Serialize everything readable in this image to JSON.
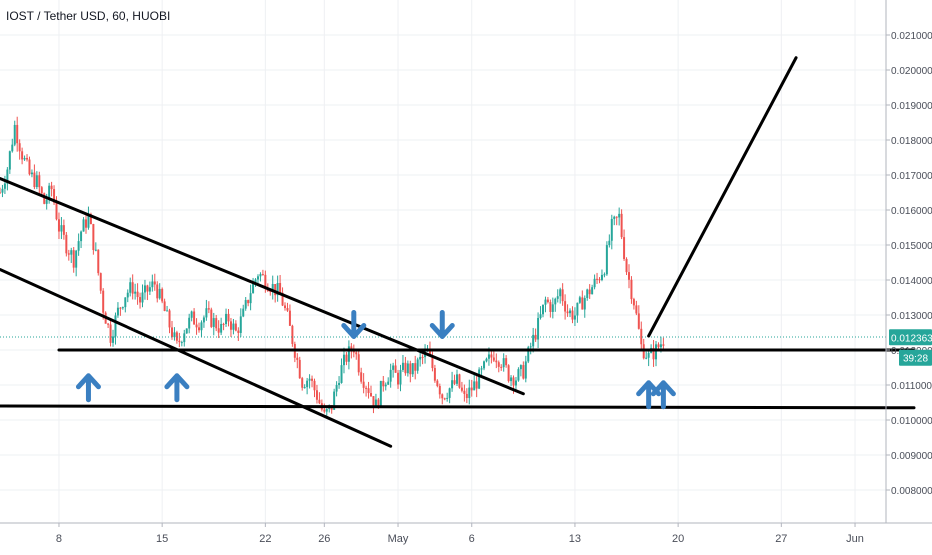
{
  "chart_data": {
    "type": "candlestick",
    "title": "IOST / Tether USD, 60, HUOBI",
    "xlabel": "",
    "ylabel": "",
    "grid": true,
    "ylim": [
      0.0072,
      0.0216
    ],
    "xlim": [
      "2019-04-04",
      "2019-06-05"
    ],
    "x_ticks": [
      {
        "date": "2019-04-08",
        "label": "8"
      },
      {
        "date": "2019-04-15",
        "label": "15"
      },
      {
        "date": "2019-04-22",
        "label": "22"
      },
      {
        "date": "2019-04-26",
        "label": "26"
      },
      {
        "date": "2019-05-01",
        "label": "May"
      },
      {
        "date": "2019-05-06",
        "label": "6"
      },
      {
        "date": "2019-05-13",
        "label": "13"
      },
      {
        "date": "2019-05-20",
        "label": "20"
      },
      {
        "date": "2019-05-27",
        "label": "27"
      },
      {
        "date": "2019-06-01",
        "label": "Jun"
      }
    ],
    "y_ticks": [
      "0.008000",
      "0.009000",
      "0.010000",
      "0.011000",
      "0.012000",
      "0.013000",
      "0.014000",
      "0.015000",
      "0.016000",
      "0.017000",
      "0.018000",
      "0.019000",
      "0.020000",
      "0.021000"
    ],
    "price_path": [
      [
        "2019-04-04 00:00",
        0.0165
      ],
      [
        "2019-04-04 12:00",
        0.0172
      ],
      [
        "2019-04-05 00:00",
        0.0184
      ],
      [
        "2019-04-05 12:00",
        0.0176
      ],
      [
        "2019-04-06 00:00",
        0.017
      ],
      [
        "2019-04-06 12:00",
        0.0168
      ],
      [
        "2019-04-07 00:00",
        0.0162
      ],
      [
        "2019-04-07 12:00",
        0.0166
      ],
      [
        "2019-04-08 00:00",
        0.0155
      ],
      [
        "2019-04-08 12:00",
        0.015
      ],
      [
        "2019-04-09 00:00",
        0.0146
      ],
      [
        "2019-04-09 12:00",
        0.0154
      ],
      [
        "2019-04-10 00:00",
        0.0158
      ],
      [
        "2019-04-10 12:00",
        0.0147
      ],
      [
        "2019-04-11 00:00",
        0.0132
      ],
      [
        "2019-04-11 12:00",
        0.0124
      ],
      [
        "2019-04-12 00:00",
        0.0131
      ],
      [
        "2019-04-12 12:00",
        0.0136
      ],
      [
        "2019-04-13 00:00",
        0.0138
      ],
      [
        "2019-04-13 12:00",
        0.0134
      ],
      [
        "2019-04-14 00:00",
        0.0137
      ],
      [
        "2019-04-14 12:00",
        0.0139
      ],
      [
        "2019-04-15 00:00",
        0.0133
      ],
      [
        "2019-04-15 12:00",
        0.0127
      ],
      [
        "2019-04-16 00:00",
        0.0121
      ],
      [
        "2019-04-16 12:00",
        0.0126
      ],
      [
        "2019-04-17 00:00",
        0.0129
      ],
      [
        "2019-04-17 12:00",
        0.0128
      ],
      [
        "2019-04-18 00:00",
        0.013
      ],
      [
        "2019-04-18 12:00",
        0.0128
      ],
      [
        "2019-04-19 00:00",
        0.0126
      ],
      [
        "2019-04-19 12:00",
        0.0129
      ],
      [
        "2019-04-20 00:00",
        0.0125
      ],
      [
        "2019-04-20 12:00",
        0.013
      ],
      [
        "2019-04-21 00:00",
        0.0137
      ],
      [
        "2019-04-21 12:00",
        0.0142
      ],
      [
        "2019-04-22 00:00",
        0.014
      ],
      [
        "2019-04-22 12:00",
        0.0138
      ],
      [
        "2019-04-23 00:00",
        0.0136
      ],
      [
        "2019-04-23 12:00",
        0.0129
      ],
      [
        "2019-04-24 00:00",
        0.012
      ],
      [
        "2019-04-24 12:00",
        0.0111
      ],
      [
        "2019-04-25 00:00",
        0.0112
      ],
      [
        "2019-04-25 12:00",
        0.0107
      ],
      [
        "2019-04-26 00:00",
        0.0101
      ],
      [
        "2019-04-26 12:00",
        0.0104
      ],
      [
        "2019-04-27 00:00",
        0.0113
      ],
      [
        "2019-04-27 12:00",
        0.0118
      ],
      [
        "2019-04-28 00:00",
        0.0121
      ],
      [
        "2019-04-28 12:00",
        0.0113
      ],
      [
        "2019-04-29 00:00",
        0.0109
      ],
      [
        "2019-04-29 12:00",
        0.0104
      ],
      [
        "2019-04-30 00:00",
        0.0111
      ],
      [
        "2019-04-30 12:00",
        0.0114
      ],
      [
        "2019-05-01 00:00",
        0.0112
      ],
      [
        "2019-05-01 12:00",
        0.0115
      ],
      [
        "2019-05-02 00:00",
        0.0114
      ],
      [
        "2019-05-02 12:00",
        0.0117
      ],
      [
        "2019-05-03 00:00",
        0.0119
      ],
      [
        "2019-05-03 12:00",
        0.0113
      ],
      [
        "2019-05-04 00:00",
        0.0107
      ],
      [
        "2019-05-04 12:00",
        0.0109
      ],
      [
        "2019-05-05 00:00",
        0.0111
      ],
      [
        "2019-05-05 12:00",
        0.0106
      ],
      [
        "2019-05-06 00:00",
        0.0109
      ],
      [
        "2019-05-06 12:00",
        0.0112
      ],
      [
        "2019-05-07 00:00",
        0.0116
      ],
      [
        "2019-05-07 12:00",
        0.0119
      ],
      [
        "2019-05-08 00:00",
        0.0117
      ],
      [
        "2019-05-08 12:00",
        0.0113
      ],
      [
        "2019-05-09 00:00",
        0.0112
      ],
      [
        "2019-05-09 12:00",
        0.0114
      ],
      [
        "2019-05-10 00:00",
        0.0121
      ],
      [
        "2019-05-10 12:00",
        0.0127
      ],
      [
        "2019-05-11 00:00",
        0.0134
      ],
      [
        "2019-05-11 12:00",
        0.0132
      ],
      [
        "2019-05-12 00:00",
        0.0137
      ],
      [
        "2019-05-12 12:00",
        0.0131
      ],
      [
        "2019-05-13 00:00",
        0.013
      ],
      [
        "2019-05-13 12:00",
        0.0134
      ],
      [
        "2019-05-14 00:00",
        0.0137
      ],
      [
        "2019-05-14 12:00",
        0.014
      ],
      [
        "2019-05-15 00:00",
        0.0144
      ],
      [
        "2019-05-15 12:00",
        0.0155
      ],
      [
        "2019-05-16 00:00",
        0.0158
      ],
      [
        "2019-05-16 12:00",
        0.0143
      ],
      [
        "2019-05-17 00:00",
        0.0134
      ],
      [
        "2019-05-17 12:00",
        0.0121
      ],
      [
        "2019-05-18 00:00",
        0.0118
      ],
      [
        "2019-05-18 12:00",
        0.012
      ],
      [
        "2019-05-19 00:00",
        0.0123
      ]
    ],
    "last_price": {
      "label": "0.012363",
      "value": 0.012363,
      "countdown": "39:28",
      "countdown_value": 0.01178
    },
    "annotations": {
      "lines": [
        {
          "name": "upper-channel-line",
          "from": [
            "2019-04-04 00:00",
            0.0169
          ],
          "to": [
            "2019-05-09 12:00",
            0.01075
          ]
        },
        {
          "name": "lower-channel-line",
          "from": [
            "2019-04-04 00:00",
            0.0143
          ],
          "to": [
            "2019-04-30 12:00",
            0.00925
          ]
        },
        {
          "name": "resistance-line",
          "from": [
            "2019-04-08 00:00",
            0.012
          ],
          "to": [
            "2019-06-05 00:00",
            0.012
          ]
        },
        {
          "name": "support-line",
          "from": [
            "2019-04-04 00:00",
            0.0104
          ],
          "to": [
            "2019-06-05 00:00",
            0.01035
          ]
        },
        {
          "name": "projection-line",
          "from": [
            "2019-05-18 00:00",
            0.0124
          ],
          "to": [
            "2019-05-28 00:00",
            0.02035
          ]
        }
      ],
      "arrows": [
        {
          "name": "up-arrow-1",
          "direction": "up",
          "at": [
            "2019-04-10 00:00",
            0.01095
          ]
        },
        {
          "name": "up-arrow-2",
          "direction": "up",
          "at": [
            "2019-04-16 00:00",
            0.01095
          ]
        },
        {
          "name": "down-arrow-1",
          "direction": "down",
          "at": [
            "2019-04-28 00:00",
            0.0127
          ]
        },
        {
          "name": "down-arrow-2",
          "direction": "down",
          "at": [
            "2019-05-04 00:00",
            0.0127
          ]
        },
        {
          "name": "up-arrow-3",
          "direction": "up",
          "at": [
            "2019-05-18 00:00",
            0.01075
          ]
        },
        {
          "name": "up-arrow-4",
          "direction": "up",
          "at": [
            "2019-05-19 00:00",
            0.01075
          ]
        }
      ]
    },
    "colors": {
      "up": "#26a69a",
      "down": "#ef5350",
      "arrow": "#3a7fc1",
      "drawing": "#000000",
      "grid": "#eef0f3",
      "axis_text": "#4a4e59",
      "last_price_bg": "#26a69a"
    }
  }
}
